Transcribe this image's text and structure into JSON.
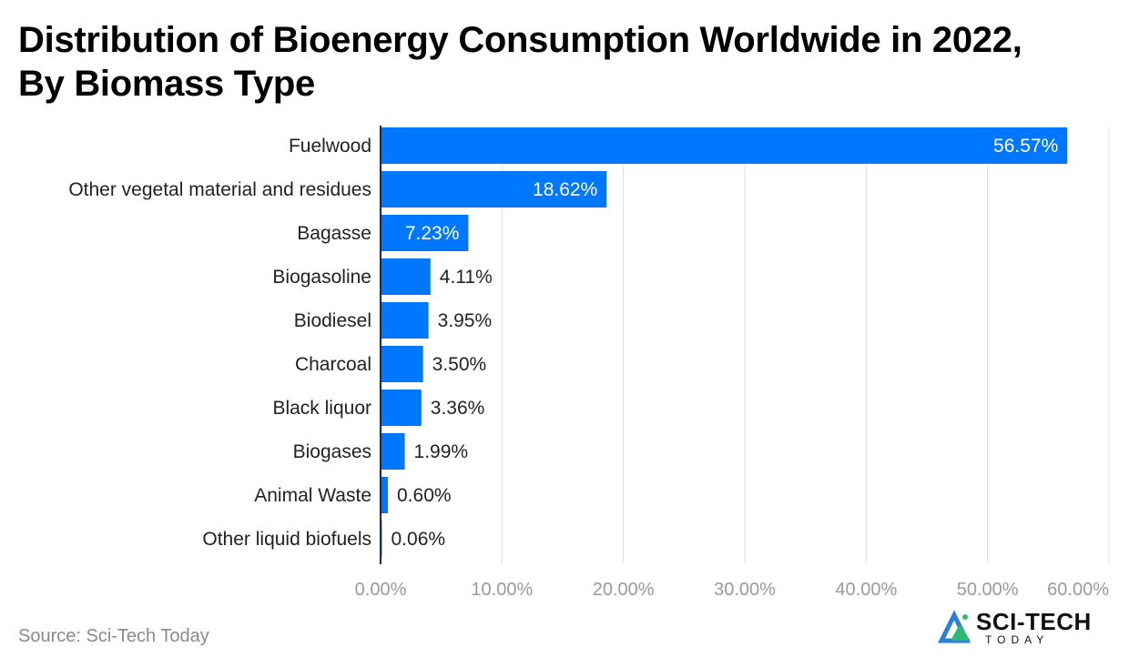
{
  "title_line1": "Distribution of Bioenergy Consumption Worldwide in 2022,",
  "title_line2": "By Biomass Type",
  "source": "Source: Sci-Tech Today",
  "logo": {
    "main": "SCI-TECH",
    "sub": "TODAY"
  },
  "colors": {
    "bar": "#0077ff",
    "grid": "#e0e0e0",
    "axis": "#1a2a4a",
    "tick": "#9a9a9a"
  },
  "chart_data": {
    "type": "bar",
    "orientation": "horizontal",
    "categories": [
      "Fuelwood",
      "Other vegetal material and residues",
      "Bagasse",
      "Biogasoline",
      "Biodiesel",
      "Charcoal",
      "Black liquor",
      "Biogases",
      "Animal Waste",
      "Other liquid biofuels"
    ],
    "values": [
      56.57,
      18.62,
      7.23,
      4.11,
      3.95,
      3.5,
      3.36,
      1.99,
      0.6,
      0.06
    ],
    "value_labels": [
      "56.57%",
      "18.62%",
      "7.23%",
      "4.11%",
      "3.95%",
      "3.50%",
      "3.36%",
      "1.99%",
      "0.60%",
      "0.06%"
    ],
    "xlim": [
      0,
      60
    ],
    "xticks": [
      0,
      10,
      20,
      30,
      40,
      50,
      60
    ],
    "xtick_labels": [
      "0.00%",
      "10.00%",
      "20.00%",
      "30.00%",
      "40.00%",
      "50.00%",
      "60.00%"
    ],
    "grid": true
  }
}
